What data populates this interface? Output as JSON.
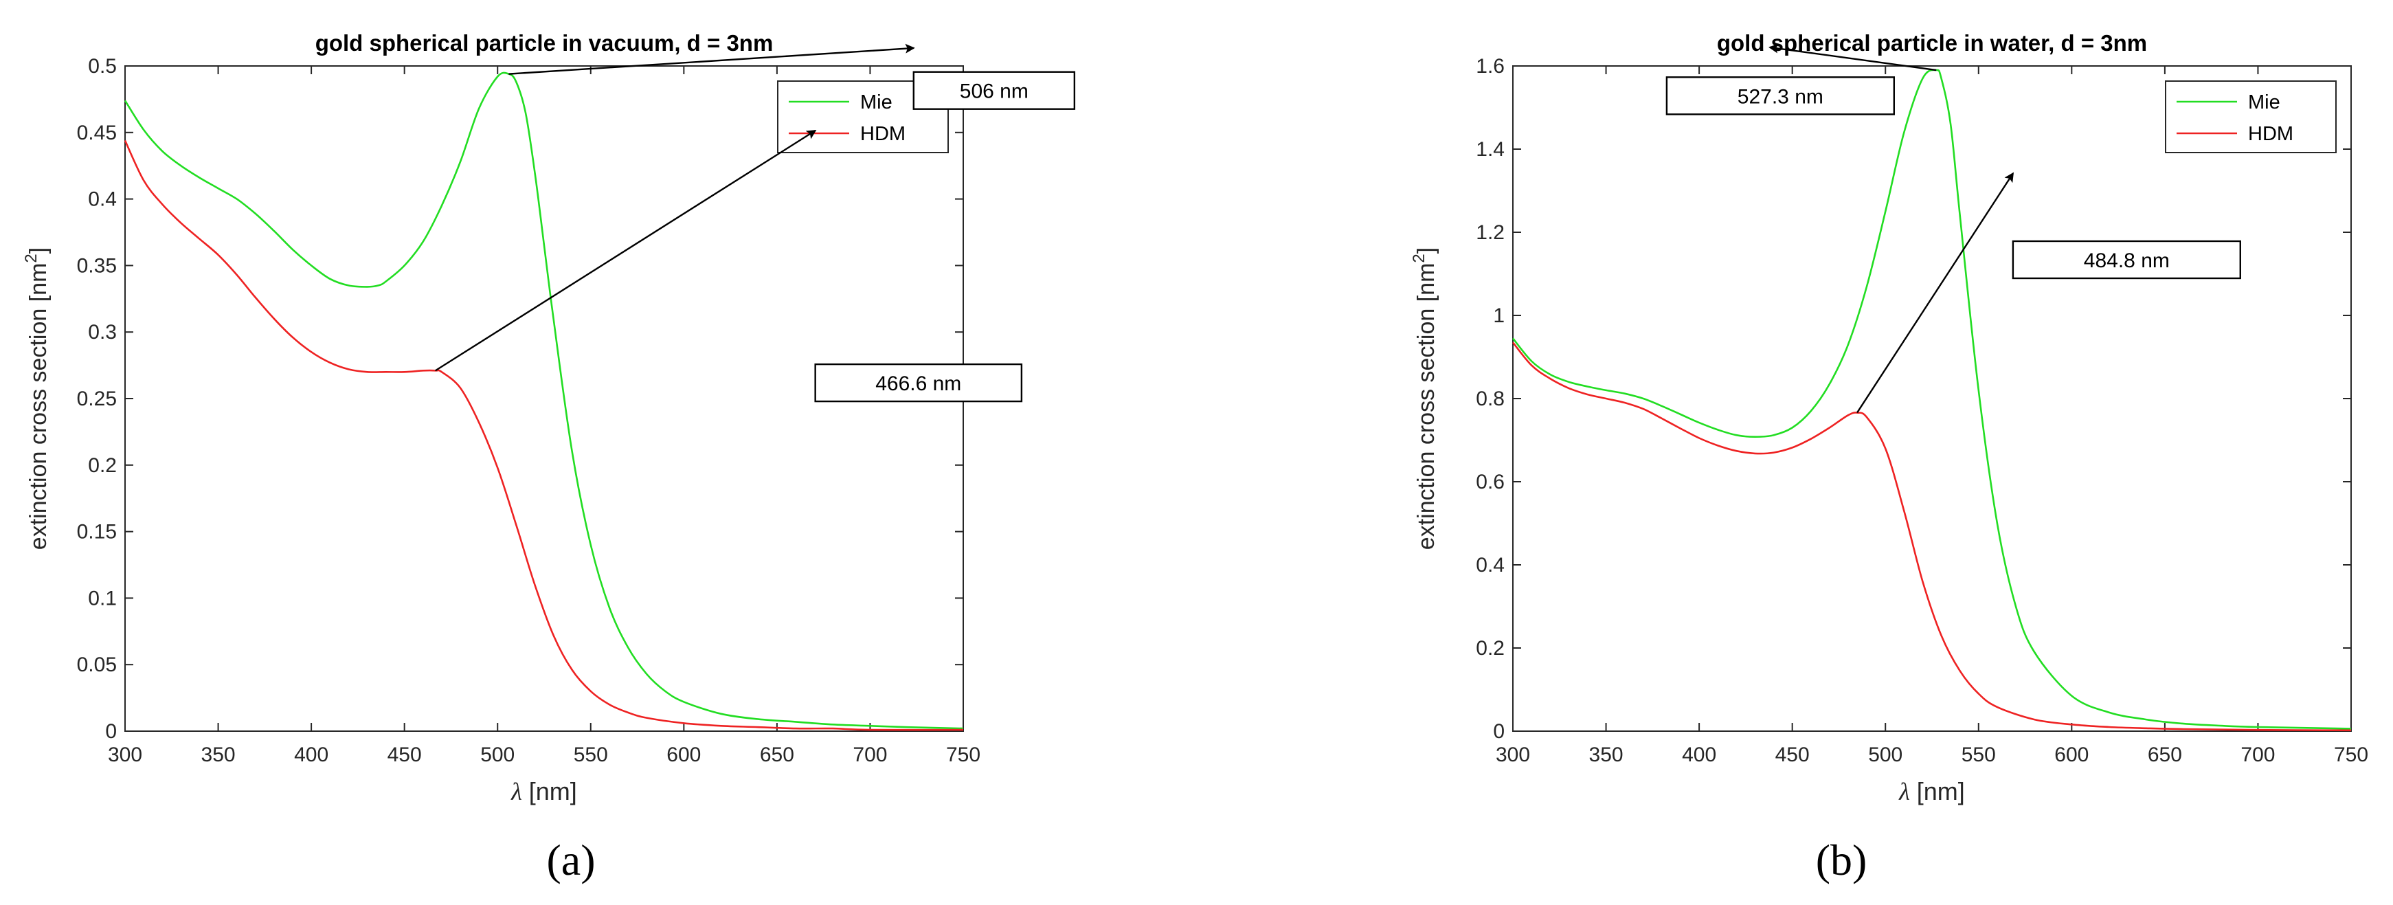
{
  "colors": {
    "mie": "#22dd22",
    "hdm": "#ee2222",
    "axis": "#262626",
    "background": "#ffffff"
  },
  "captions": [
    "(a)",
    "(b)"
  ],
  "chart_data": [
    {
      "type": "line",
      "title": "gold spherical particle in vacuum, d = 3nm",
      "xlabel_symbol": "λ",
      "xlabel_unit": "[nm]",
      "ylabel": "extinction cross section [nm",
      "ylabel_sup": "2",
      "ylabel_close": "]",
      "xlim": [
        300,
        750
      ],
      "ylim": [
        0,
        0.5
      ],
      "x_ticks": [
        300,
        350,
        400,
        450,
        500,
        550,
        600,
        650,
        700,
        750
      ],
      "y_ticks": [
        0,
        0.05,
        0.1,
        0.15,
        0.2,
        0.25,
        0.3,
        0.35,
        0.4,
        0.45,
        0.5
      ],
      "y_tick_labels": [
        "0",
        "0.05",
        "0.1",
        "0.15",
        "0.2",
        "0.25",
        "0.3",
        "0.35",
        "0.4",
        "0.45",
        "0.5"
      ],
      "grid": false,
      "legend_position": "top-right",
      "series": [
        {
          "name": "Mie",
          "color": "#22dd22",
          "x": [
            300,
            310,
            320,
            330,
            340,
            350,
            360,
            370,
            380,
            390,
            400,
            410,
            420,
            430,
            436,
            440,
            450,
            460,
            470,
            480,
            490,
            500,
            506,
            510,
            515,
            520,
            525,
            530,
            540,
            550,
            560,
            570,
            580,
            590,
            600,
            620,
            640,
            660,
            680,
            700,
            720,
            750
          ],
          "y": [
            0.474,
            0.452,
            0.436,
            0.425,
            0.416,
            0.408,
            0.4,
            0.389,
            0.376,
            0.362,
            0.35,
            0.34,
            0.335,
            0.334,
            0.335,
            0.338,
            0.35,
            0.368,
            0.395,
            0.428,
            0.468,
            0.492,
            0.494,
            0.488,
            0.465,
            0.42,
            0.365,
            0.31,
            0.21,
            0.14,
            0.093,
            0.063,
            0.043,
            0.03,
            0.022,
            0.013,
            0.009,
            0.007,
            0.005,
            0.004,
            0.003,
            0.002
          ]
        },
        {
          "name": "HDM",
          "color": "#ee2222",
          "x": [
            300,
            310,
            320,
            330,
            340,
            350,
            360,
            370,
            380,
            390,
            400,
            410,
            420,
            430,
            440,
            450,
            460,
            466.6,
            470,
            480,
            490,
            500,
            510,
            520,
            530,
            540,
            550,
            560,
            570,
            580,
            600,
            620,
            640,
            660,
            680,
            700,
            750
          ],
          "y": [
            0.444,
            0.414,
            0.396,
            0.382,
            0.37,
            0.358,
            0.343,
            0.326,
            0.31,
            0.296,
            0.285,
            0.277,
            0.272,
            0.27,
            0.27,
            0.27,
            0.271,
            0.271,
            0.27,
            0.258,
            0.232,
            0.198,
            0.155,
            0.11,
            0.072,
            0.046,
            0.03,
            0.02,
            0.014,
            0.01,
            0.006,
            0.004,
            0.003,
            0.002,
            0.002,
            0.001,
            0.001
          ]
        }
      ],
      "annotations": [
        {
          "label": "506 nm",
          "x": 506,
          "y": 0.494,
          "box_x": 0.3818,
          "box_y": 0.0795,
          "box_w": 0.0672,
          "box_h": 0.041,
          "arrow_end_x": 0.3818,
          "arrow_end_y": 0.0531
        },
        {
          "label": "466.6 nm",
          "x": 466.6,
          "y": 0.271,
          "box_x": 0.3407,
          "box_y": 0.4025,
          "box_w": 0.0862,
          "box_h": 0.041,
          "arrow_end_x": 0.3407,
          "arrow_end_y": 0.1443
        }
      ]
    },
    {
      "type": "line",
      "title": "gold spherical particle in water, d = 3nm",
      "xlabel_symbol": "λ",
      "xlabel_unit": "[nm]",
      "ylabel": "extinction cross section [nm",
      "ylabel_sup": "2",
      "ylabel_close": "]",
      "xlim": [
        300,
        750
      ],
      "ylim": [
        0,
        1.6
      ],
      "x_ticks": [
        300,
        350,
        400,
        450,
        500,
        550,
        600,
        650,
        700,
        750
      ],
      "y_ticks": [
        0,
        0.2,
        0.4,
        0.6,
        0.8,
        1,
        1.2,
        1.4,
        1.6
      ],
      "y_tick_labels": [
        "0",
        "0.2",
        "0.4",
        "0.6",
        "0.8",
        "1",
        "1.2",
        "1.4",
        "1.6"
      ],
      "grid": false,
      "legend_position": "top-right",
      "series": [
        {
          "name": "Mie",
          "color": "#22dd22",
          "x": [
            300,
            310,
            320,
            330,
            340,
            350,
            360,
            370,
            380,
            390,
            400,
            410,
            420,
            430,
            440,
            450,
            460,
            470,
            480,
            490,
            500,
            510,
            520,
            527.3,
            530,
            535,
            540,
            550,
            560,
            570,
            580,
            600,
            620,
            640,
            660,
            680,
            700,
            750
          ],
          "y": [
            0.945,
            0.89,
            0.858,
            0.84,
            0.829,
            0.82,
            0.812,
            0.8,
            0.782,
            0.762,
            0.742,
            0.725,
            0.712,
            0.708,
            0.712,
            0.73,
            0.77,
            0.835,
            0.93,
            1.07,
            1.25,
            1.44,
            1.57,
            1.59,
            1.57,
            1.46,
            1.24,
            0.82,
            0.5,
            0.3,
            0.19,
            0.085,
            0.045,
            0.028,
            0.018,
            0.013,
            0.01,
            0.006
          ]
        },
        {
          "name": "HDM",
          "color": "#ee2222",
          "x": [
            300,
            310,
            320,
            330,
            340,
            350,
            360,
            370,
            380,
            390,
            400,
            410,
            420,
            430,
            440,
            450,
            460,
            470,
            480,
            484.8,
            490,
            500,
            510,
            520,
            530,
            540,
            550,
            560,
            580,
            600,
            620,
            640,
            660,
            700,
            750
          ],
          "y": [
            0.935,
            0.88,
            0.848,
            0.825,
            0.81,
            0.8,
            0.79,
            0.775,
            0.752,
            0.728,
            0.705,
            0.687,
            0.674,
            0.668,
            0.67,
            0.682,
            0.703,
            0.73,
            0.76,
            0.766,
            0.755,
            0.68,
            0.53,
            0.36,
            0.23,
            0.145,
            0.09,
            0.058,
            0.028,
            0.016,
            0.01,
            0.007,
            0.005,
            0.003,
            0.002
          ]
        }
      ],
      "annotations": [
        {
          "label": "527.3 nm",
          "x": 527.3,
          "y": 1.59,
          "box_x": 0.6965,
          "box_y": 0.0853,
          "box_w": 0.095,
          "box_h": 0.041,
          "arrow_end_x": 0.7396,
          "arrow_end_y": 0.0523
        },
        {
          "label": "484.8 nm",
          "x": 484.8,
          "y": 0.766,
          "box_x": 0.8412,
          "box_y": 0.2665,
          "box_w": 0.095,
          "box_h": 0.041,
          "arrow_end_x": 0.8412,
          "arrow_end_y": 0.1916
        }
      ]
    }
  ]
}
